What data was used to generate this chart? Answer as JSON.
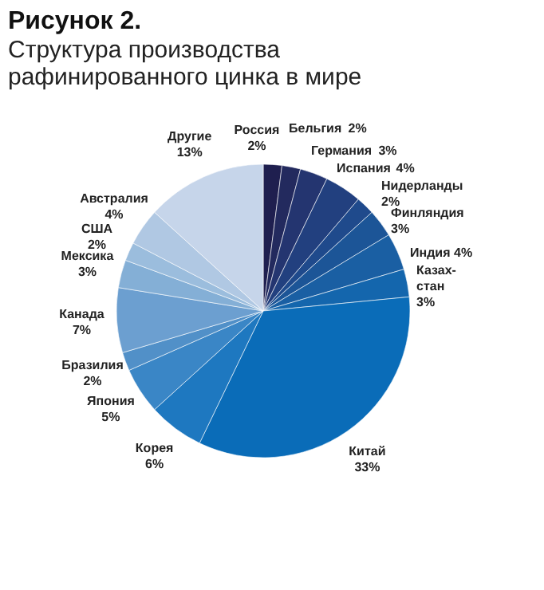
{
  "chart_data": {
    "type": "pie",
    "title": "Рисунок 2.",
    "subtitle": "Структура производства рафинированного цинка в мире",
    "categories": [
      "Россия",
      "Бельгия",
      "Германия",
      "Испания",
      "Нидерланды",
      "Финляндия",
      "Индия",
      "Казах-\nстан",
      "Китай",
      "Корея",
      "Япония",
      "Бразилия",
      "Канада",
      "Мексика",
      "США",
      "Австралия",
      "Другие"
    ],
    "values": [
      2,
      2,
      3,
      4,
      2,
      3,
      4,
      3,
      33,
      6,
      5,
      2,
      7,
      3,
      2,
      4,
      13
    ],
    "value_labels": [
      "2%",
      "2%",
      "3%",
      "4%",
      "2%",
      "3%",
      "4%",
      "3%",
      "33%",
      "6%",
      "5%",
      "2%",
      "7%",
      "3%",
      "2%",
      "4%",
      "13%"
    ],
    "colors": [
      "#1f1f4f",
      "#232a5e",
      "#243570",
      "#22407f",
      "#1f4a8c",
      "#1c5597",
      "#1a5fa3",
      "#1466ad",
      "#0a6cb8",
      "#1e78c0",
      "#3a86c6",
      "#5190c8",
      "#6c9fd0",
      "#84afd6",
      "#9bbddd",
      "#b0c8e3",
      "#c6d5ea"
    ],
    "legend": false
  }
}
